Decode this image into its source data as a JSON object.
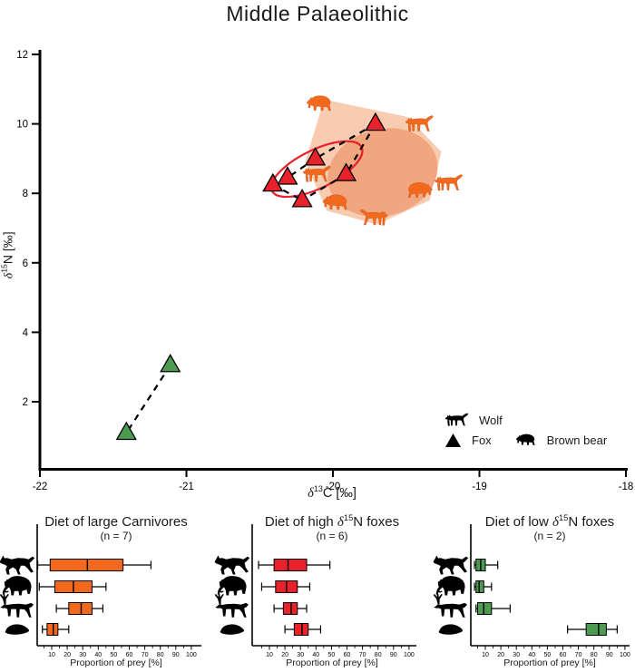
{
  "title": "Middle Palaeolithic",
  "colors": {
    "fox_high": "#e8212b",
    "fox_low": "#4c9b50",
    "carnivore_orange": "#f2691e",
    "hull_fill": "#f8ccb1",
    "blob_fill": "#f2a67f",
    "ellipse_outline": "#e8212b",
    "axis": "#000000"
  },
  "chart_data": [
    {
      "type": "scatter",
      "title": "Middle Palaeolithic",
      "xlabel": {
        "delta": "δ",
        "sup": "13",
        "post": "C [‰]"
      },
      "ylabel": {
        "delta": "δ",
        "sup": "15",
        "post": "N [‰]"
      },
      "xlim": [
        -22,
        -18
      ],
      "ylim": [
        0,
        12.2
      ],
      "xticks": [
        -22,
        -21,
        -20,
        -19,
        -18
      ],
      "yticks": [
        2,
        4,
        6,
        8,
        10,
        12
      ],
      "series": [
        {
          "name": "Fox (high d15N)",
          "marker": "triangle",
          "color": "#e8212b",
          "points": [
            [
              -19.71,
              10.0
            ],
            [
              -20.12,
              9.0
            ],
            [
              -19.91,
              8.55
            ],
            [
              -20.31,
              8.45
            ],
            [
              -20.41,
              8.25
            ],
            [
              -20.21,
              7.8
            ]
          ]
        },
        {
          "name": "Fox (low d15N)",
          "marker": "triangle",
          "color": "#4c9b50",
          "points": [
            [
              -21.11,
              3.05
            ],
            [
              -21.41,
              1.1
            ]
          ]
        },
        {
          "name": "Wolf",
          "marker": "wolf",
          "color": "#f2691e",
          "points": [
            [
              -19.41,
              10.0
            ],
            [
              -20.11,
              8.55
            ],
            [
              -19.21,
              8.3
            ],
            [
              -19.72,
              7.3
            ]
          ]
        },
        {
          "name": "Brown bear",
          "marker": "bear",
          "color": "#f2691e",
          "points": [
            [
              -20.09,
              10.6
            ],
            [
              -19.41,
              8.1
            ],
            [
              -19.98,
              7.75
            ]
          ]
        }
      ],
      "dashed_links": [
        [
          [
            -19.71,
            10.0
          ],
          [
            -20.12,
            9.0
          ]
        ],
        [
          [
            -19.71,
            10.0
          ],
          [
            -19.91,
            8.55
          ]
        ],
        [
          [
            -20.12,
            9.0
          ],
          [
            -20.31,
            8.45
          ]
        ],
        [
          [
            -20.31,
            8.45
          ],
          [
            -20.41,
            8.25
          ]
        ],
        [
          [
            -20.41,
            8.25
          ],
          [
            -20.21,
            7.8
          ]
        ],
        [
          [
            -19.91,
            8.55
          ],
          [
            -20.21,
            7.8
          ]
        ],
        [
          [
            -21.11,
            3.05
          ],
          [
            -21.41,
            1.1
          ]
        ]
      ],
      "hull": [
        [
          -20.06,
          10.7
        ],
        [
          -19.49,
          10.2
        ],
        [
          -19.26,
          9.2
        ],
        [
          -19.34,
          7.8
        ],
        [
          -19.7,
          7.1
        ],
        [
          -20.04,
          7.5
        ],
        [
          -20.19,
          8.9
        ]
      ],
      "blob": {
        "cx": -19.66,
        "cy": 8.6,
        "rx": 0.38,
        "ry": 1.25,
        "angle": -15
      },
      "ellipse": {
        "cx": -20.11,
        "cy": 8.7,
        "rx": 0.34,
        "ry": 0.55,
        "angle": -26
      },
      "legend": [
        {
          "label": "Wolf",
          "marker": "wolf"
        },
        {
          "label": "Fox",
          "marker": "triangle"
        },
        {
          "label": "Brown bear",
          "marker": "bear"
        }
      ]
    },
    {
      "type": "box",
      "title": {
        "pre": "Diet of large Carnivores",
        "delta": "",
        "sup": "",
        "post": ""
      },
      "n_label": "(n = 7)",
      "color": "#f2691e",
      "xlabel": "Proportion of prey [%]",
      "xticks": [
        10,
        20,
        30,
        40,
        50,
        60,
        70,
        80,
        90,
        100
      ],
      "rows": [
        {
          "animal": "horse",
          "whisker_low": 1,
          "q1": 9,
          "median": 33,
          "q3": 56,
          "whisker_high": 74
        },
        {
          "animal": "mammoth",
          "whisker_low": 2,
          "q1": 12,
          "median": 24,
          "q3": 36,
          "whisker_high": 45
        },
        {
          "animal": "reindeer",
          "whisker_low": 13,
          "q1": 21,
          "median": 29,
          "q3": 36,
          "whisker_high": 43
        },
        {
          "animal": "rodent",
          "whisker_low": 4,
          "q1": 7,
          "median": 11,
          "q3": 14,
          "whisker_high": 21
        }
      ]
    },
    {
      "type": "box",
      "title": {
        "pre": "Diet of high ",
        "delta": "δ",
        "sup": "15",
        "post": "N foxes"
      },
      "n_label": "(n = 6)",
      "color": "#e8212b",
      "xlabel": "Proportion of prey [%]",
      "xticks": [
        10,
        20,
        30,
        40,
        50,
        60,
        70,
        80,
        90,
        100
      ],
      "rows": [
        {
          "animal": "horse",
          "whisker_low": 3,
          "q1": 13,
          "median": 22,
          "q3": 34,
          "whisker_high": 49
        },
        {
          "animal": "mammoth",
          "whisker_low": 5,
          "q1": 14,
          "median": 21,
          "q3": 28,
          "whisker_high": 36
        },
        {
          "animal": "reindeer",
          "whisker_low": 13,
          "q1": 19,
          "median": 24,
          "q3": 28,
          "whisker_high": 34
        },
        {
          "animal": "rodent",
          "whisker_low": 20,
          "q1": 26,
          "median": 31,
          "q3": 35,
          "whisker_high": 43
        }
      ]
    },
    {
      "type": "box",
      "title": {
        "pre": "Diet of low ",
        "delta": "δ",
        "sup": "15",
        "post": "N foxes"
      },
      "n_label": "(n = 2)",
      "color": "#4c9b50",
      "xlabel": "Proportion of prey [%]",
      "xticks": [
        10,
        20,
        30,
        40,
        50,
        60,
        70,
        80,
        90,
        100
      ],
      "rows": [
        {
          "animal": "horse",
          "whisker_low": 3,
          "q1": 4,
          "median": 7,
          "q3": 10,
          "whisker_high": 18
        },
        {
          "animal": "mammoth",
          "whisker_low": 3,
          "q1": 4,
          "median": 6,
          "q3": 9,
          "whisker_high": 14
        },
        {
          "animal": "reindeer",
          "whisker_low": 4,
          "q1": 5,
          "median": 9,
          "q3": 14,
          "whisker_high": 26
        },
        {
          "animal": "rodent",
          "whisker_low": 63,
          "q1": 75,
          "median": 83,
          "q3": 88,
          "whisker_high": 95
        }
      ]
    }
  ]
}
